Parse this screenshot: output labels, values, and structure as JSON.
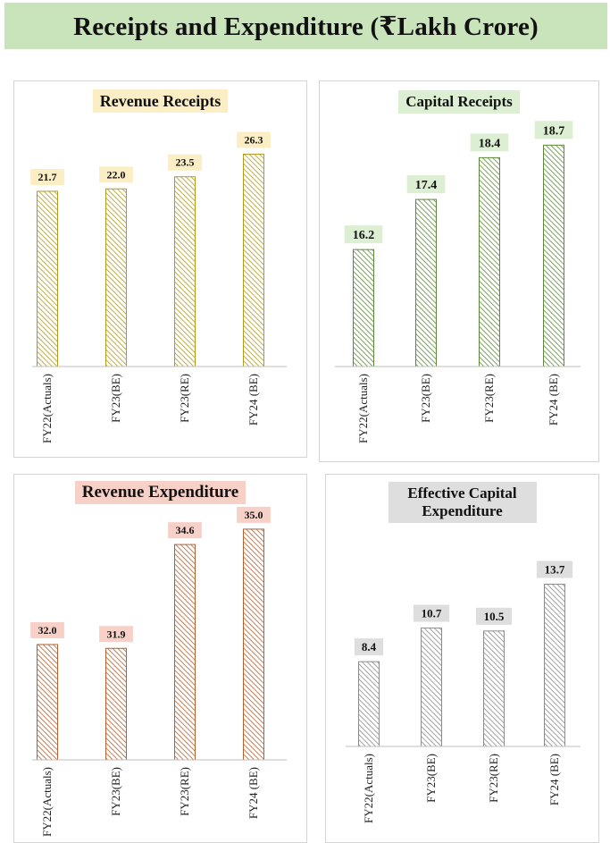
{
  "page_title": "Receipts and Expenditure (₹Lakh Crore)",
  "colors": {
    "banner_bg": "#c9e3bb",
    "revenue_receipts": {
      "stroke": "#b29a1f",
      "label_bg": "#fbeec4"
    },
    "capital_receipts": {
      "stroke": "#5d8a3a",
      "label_bg": "#dcefd2"
    },
    "revenue_expenditure": {
      "stroke": "#b5602f",
      "label_bg": "#f7d0c7"
    },
    "effective_capital_expenditure": {
      "stroke": "#8c8c8c",
      "label_bg": "#dedede"
    }
  },
  "chart_data": [
    {
      "type": "bar",
      "title": "Revenue Receipts",
      "categories": [
        "FY22(Actuals)",
        "FY23(BE)",
        "FY23(RE)",
        "FY24 (BE)"
      ],
      "values": [
        21.7,
        22.0,
        23.5,
        26.3
      ],
      "data_labels": [
        "21.7",
        "22.0",
        "23.5",
        "26.3"
      ],
      "ylim": [
        0,
        30
      ],
      "grid": false,
      "legend": "none",
      "pattern": "diagonal-hatch"
    },
    {
      "type": "bar",
      "title": "Capital Receipts",
      "categories": [
        "FY22(Actuals)",
        "FY23(BE)",
        "FY23(RE)",
        "FY24 (BE)"
      ],
      "values": [
        16.2,
        17.4,
        18.4,
        18.7
      ],
      "data_labels": [
        "16.2",
        "17.4",
        "18.4",
        "18.7"
      ],
      "ylim": [
        13.4,
        19.2
      ],
      "grid": false,
      "legend": "none",
      "pattern": "diagonal-hatch"
    },
    {
      "type": "bar",
      "title": "Revenue Expenditure",
      "categories": [
        "FY22(Actuals)",
        "FY23(BE)",
        "FY23(RE)",
        "FY24 (BE)"
      ],
      "values": [
        32.0,
        31.9,
        34.6,
        35.0
      ],
      "data_labels": [
        "32.0",
        "31.9",
        "34.6",
        "35.0"
      ],
      "ylim": [
        29.0,
        35.3
      ],
      "grid": false,
      "legend": "none",
      "pattern": "diagonal-hatch"
    },
    {
      "type": "bar",
      "title": "Effective Capital Expenditure",
      "categories": [
        "FY22(Actuals)",
        "FY23(BE)",
        "FY23(RE)",
        "FY24 (BE)"
      ],
      "values": [
        8.4,
        10.7,
        10.5,
        13.7
      ],
      "data_labels": [
        "8.4",
        "10.7",
        "10.5",
        "13.7"
      ],
      "ylim": [
        2.6,
        15.2
      ],
      "grid": false,
      "legend": "none",
      "pattern": "diagonal-hatch"
    }
  ]
}
